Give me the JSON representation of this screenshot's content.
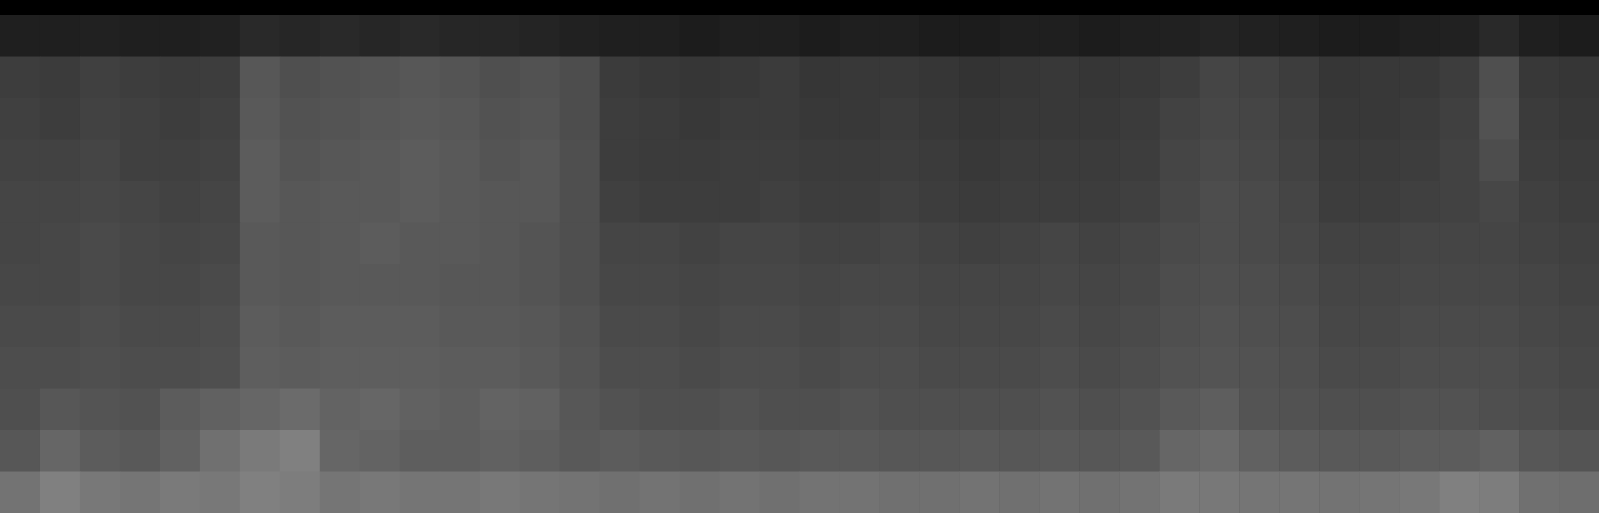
{
  "chart_data": {
    "type": "heatmap",
    "tick_labels": false,
    "zlim": [
      0,
      1
    ],
    "cells": [
      [
        0.12,
        0.12,
        0.13,
        0.12,
        0.12,
        0.13,
        0.16,
        0.15,
        0.16,
        0.15,
        0.16,
        0.15,
        0.15,
        0.14,
        0.13,
        0.12,
        0.12,
        0.11,
        0.12,
        0.12,
        0.11,
        0.12,
        0.12,
        0.11,
        0.11,
        0.12,
        0.12,
        0.11,
        0.12,
        0.13,
        0.14,
        0.13,
        0.12,
        0.11,
        0.11,
        0.12,
        0.13,
        0.16,
        0.12,
        0.11
      ],
      [
        0.24,
        0.23,
        0.25,
        0.24,
        0.23,
        0.24,
        0.34,
        0.31,
        0.32,
        0.33,
        0.34,
        0.33,
        0.31,
        0.32,
        0.3,
        0.23,
        0.22,
        0.21,
        0.22,
        0.23,
        0.21,
        0.22,
        0.22,
        0.21,
        0.2,
        0.21,
        0.22,
        0.21,
        0.22,
        0.24,
        0.27,
        0.26,
        0.24,
        0.21,
        0.22,
        0.22,
        0.24,
        0.31,
        0.22,
        0.21
      ],
      [
        0.25,
        0.24,
        0.26,
        0.25,
        0.24,
        0.25,
        0.35,
        0.32,
        0.33,
        0.34,
        0.35,
        0.34,
        0.32,
        0.33,
        0.3,
        0.24,
        0.23,
        0.22,
        0.23,
        0.23,
        0.22,
        0.22,
        0.23,
        0.22,
        0.21,
        0.22,
        0.22,
        0.22,
        0.23,
        0.26,
        0.28,
        0.27,
        0.25,
        0.22,
        0.22,
        0.23,
        0.25,
        0.32,
        0.23,
        0.22
      ],
      [
        0.26,
        0.26,
        0.27,
        0.25,
        0.25,
        0.26,
        0.36,
        0.33,
        0.34,
        0.35,
        0.36,
        0.35,
        0.33,
        0.34,
        0.31,
        0.24,
        0.23,
        0.23,
        0.24,
        0.24,
        0.23,
        0.23,
        0.24,
        0.23,
        0.22,
        0.23,
        0.23,
        0.23,
        0.24,
        0.27,
        0.29,
        0.28,
        0.26,
        0.23,
        0.23,
        0.24,
        0.26,
        0.3,
        0.24,
        0.23
      ],
      [
        0.27,
        0.27,
        0.28,
        0.27,
        0.26,
        0.27,
        0.36,
        0.34,
        0.35,
        0.35,
        0.36,
        0.35,
        0.34,
        0.34,
        0.31,
        0.25,
        0.24,
        0.24,
        0.24,
        0.25,
        0.24,
        0.24,
        0.25,
        0.24,
        0.23,
        0.24,
        0.24,
        0.24,
        0.25,
        0.28,
        0.3,
        0.29,
        0.27,
        0.24,
        0.24,
        0.25,
        0.26,
        0.28,
        0.25,
        0.24
      ],
      [
        0.27,
        0.28,
        0.29,
        0.28,
        0.27,
        0.28,
        0.35,
        0.34,
        0.35,
        0.36,
        0.35,
        0.35,
        0.34,
        0.33,
        0.31,
        0.27,
        0.27,
        0.26,
        0.27,
        0.27,
        0.26,
        0.26,
        0.27,
        0.26,
        0.25,
        0.26,
        0.27,
        0.26,
        0.27,
        0.29,
        0.3,
        0.29,
        0.28,
        0.26,
        0.26,
        0.27,
        0.27,
        0.27,
        0.26,
        0.25
      ],
      [
        0.28,
        0.28,
        0.29,
        0.28,
        0.28,
        0.29,
        0.35,
        0.34,
        0.35,
        0.35,
        0.35,
        0.34,
        0.34,
        0.33,
        0.31,
        0.28,
        0.28,
        0.27,
        0.28,
        0.28,
        0.27,
        0.28,
        0.28,
        0.27,
        0.27,
        0.27,
        0.28,
        0.27,
        0.28,
        0.3,
        0.31,
        0.3,
        0.29,
        0.27,
        0.27,
        0.28,
        0.28,
        0.28,
        0.27,
        0.26
      ],
      [
        0.29,
        0.29,
        0.3,
        0.29,
        0.29,
        0.3,
        0.36,
        0.35,
        0.36,
        0.36,
        0.36,
        0.35,
        0.35,
        0.34,
        0.32,
        0.29,
        0.29,
        0.28,
        0.29,
        0.29,
        0.28,
        0.29,
        0.29,
        0.28,
        0.28,
        0.28,
        0.29,
        0.28,
        0.29,
        0.31,
        0.32,
        0.31,
        0.3,
        0.28,
        0.28,
        0.29,
        0.29,
        0.29,
        0.28,
        0.27
      ],
      [
        0.3,
        0.3,
        0.31,
        0.3,
        0.3,
        0.31,
        0.37,
        0.36,
        0.37,
        0.37,
        0.37,
        0.36,
        0.36,
        0.35,
        0.33,
        0.3,
        0.3,
        0.29,
        0.3,
        0.3,
        0.29,
        0.3,
        0.3,
        0.29,
        0.29,
        0.29,
        0.3,
        0.29,
        0.3,
        0.32,
        0.33,
        0.32,
        0.31,
        0.29,
        0.29,
        0.3,
        0.3,
        0.3,
        0.29,
        0.28
      ],
      [
        0.31,
        0.34,
        0.33,
        0.32,
        0.36,
        0.38,
        0.4,
        0.42,
        0.39,
        0.4,
        0.38,
        0.37,
        0.39,
        0.38,
        0.34,
        0.32,
        0.31,
        0.31,
        0.32,
        0.31,
        0.31,
        0.32,
        0.31,
        0.31,
        0.31,
        0.31,
        0.32,
        0.31,
        0.32,
        0.35,
        0.37,
        0.33,
        0.32,
        0.31,
        0.31,
        0.32,
        0.32,
        0.31,
        0.3,
        0.29
      ],
      [
        0.34,
        0.4,
        0.36,
        0.35,
        0.38,
        0.44,
        0.48,
        0.5,
        0.4,
        0.39,
        0.37,
        0.37,
        0.38,
        0.37,
        0.35,
        0.36,
        0.35,
        0.34,
        0.35,
        0.34,
        0.35,
        0.35,
        0.34,
        0.34,
        0.35,
        0.34,
        0.35,
        0.34,
        0.35,
        0.4,
        0.42,
        0.38,
        0.36,
        0.35,
        0.35,
        0.36,
        0.36,
        0.38,
        0.34,
        0.33
      ],
      [
        0.45,
        0.5,
        0.47,
        0.46,
        0.48,
        0.47,
        0.5,
        0.49,
        0.46,
        0.47,
        0.46,
        0.46,
        0.47,
        0.46,
        0.45,
        0.44,
        0.45,
        0.44,
        0.45,
        0.44,
        0.45,
        0.45,
        0.44,
        0.44,
        0.45,
        0.44,
        0.45,
        0.44,
        0.45,
        0.48,
        0.47,
        0.46,
        0.46,
        0.45,
        0.46,
        0.47,
        0.5,
        0.49,
        0.44,
        0.43
      ]
    ]
  }
}
